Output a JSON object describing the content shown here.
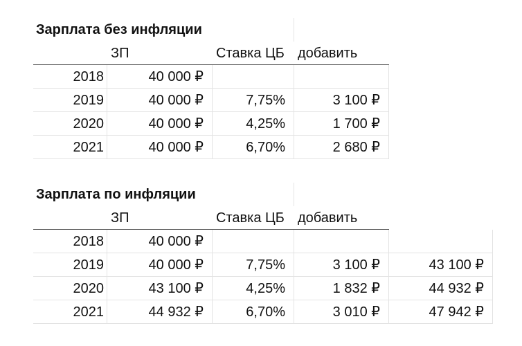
{
  "tables": [
    {
      "title": "Зарплата без инфляции",
      "headers": [
        "ЗП",
        "Ставка ЦБ",
        "добавить"
      ],
      "rows": [
        [
          "2018",
          "40 000 ₽"
        ],
        [
          "2019",
          "40 000 ₽",
          "7,75%",
          "3 100 ₽"
        ],
        [
          "2020",
          "40 000 ₽",
          "4,25%",
          "1 700 ₽"
        ],
        [
          "2021",
          "40 000 ₽",
          "6,70%",
          "2 680 ₽"
        ]
      ]
    },
    {
      "title": "Зарплата по инфляции",
      "headers": [
        "ЗП",
        "Ставка ЦБ",
        "добавить"
      ],
      "rows": [
        [
          "2018",
          "40 000 ₽"
        ],
        [
          "2019",
          "40 000 ₽",
          "7,75%",
          "3 100 ₽",
          "43 100 ₽"
        ],
        [
          "2020",
          "43 100 ₽",
          "4,25%",
          "1 832 ₽",
          "44 932 ₽"
        ],
        [
          "2021",
          "44 932 ₽",
          "6,70%",
          "3 010 ₽",
          "47 942 ₽"
        ]
      ]
    }
  ]
}
